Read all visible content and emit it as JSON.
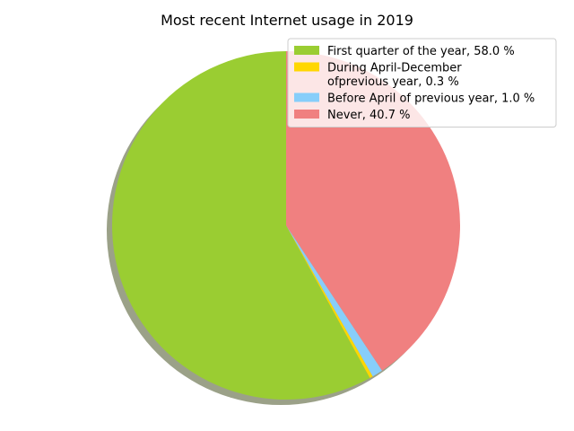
{
  "chart_data": {
    "type": "pie",
    "title": "Most recent Internet usage in 2019",
    "start_angle_deg": 90,
    "direction": "counterclockwise",
    "shadow": true,
    "legend_position": "top-right",
    "slices": [
      {
        "label": "First quarter of the year, 58.0 %",
        "label_lines": [
          "First quarter of the year, 58.0 %"
        ],
        "value": 58.0,
        "color": "#9acd32"
      },
      {
        "label": "During April-December ofprevious year, 0.3 %",
        "label_lines": [
          "During April-December",
          "ofprevious year, 0.3 %"
        ],
        "value": 0.3,
        "color": "#ffd700"
      },
      {
        "label": "Before April of previous year, 1.0 %",
        "label_lines": [
          "Before April of previous year, 1.0 %"
        ],
        "value": 1.0,
        "color": "#87cefa"
      },
      {
        "label": "Never, 40.7 %",
        "label_lines": [
          "Never, 40.7 %"
        ],
        "value": 40.7,
        "color": "#f08080"
      }
    ]
  }
}
